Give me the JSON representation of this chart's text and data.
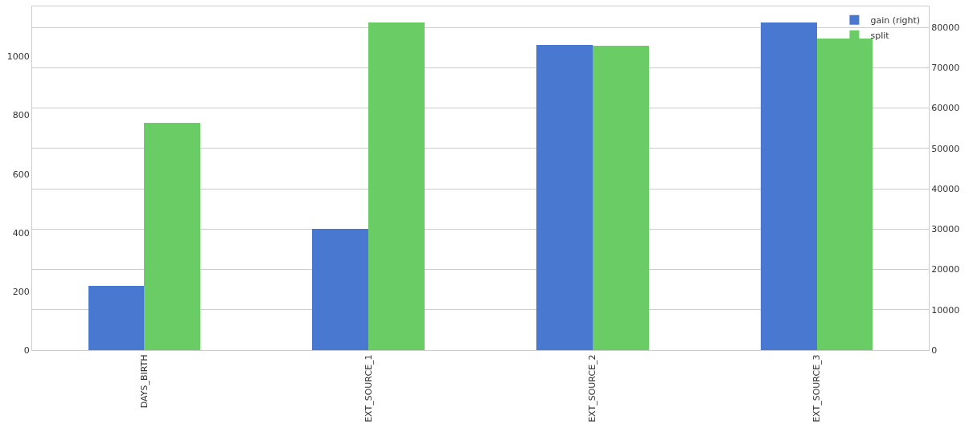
{
  "chart_data": {
    "type": "bar",
    "categories": [
      "DAYS_BIRTH",
      "EXT_SOURCE_1",
      "EXT_SOURCE_2",
      "EXT_SOURCE_3"
    ],
    "series": [
      {
        "name": "gain (right)",
        "color": "#4878cf",
        "axis": "y2",
        "values": [
          15900,
          30000,
          75700,
          81200
        ]
      },
      {
        "name": "split",
        "color": "#6acc65",
        "values": [
          774,
          1117,
          1036,
          1062
        ]
      }
    ],
    "ylim": [
      0,
      1171
    ],
    "yticks": [
      0,
      200,
      400,
      600,
      800,
      1000
    ],
    "y2lim": [
      0,
      85200
    ],
    "y2ticks": [
      0,
      10000,
      20000,
      30000,
      40000,
      50000,
      60000,
      70000,
      80000
    ],
    "grid": "y",
    "legend": "top right"
  }
}
